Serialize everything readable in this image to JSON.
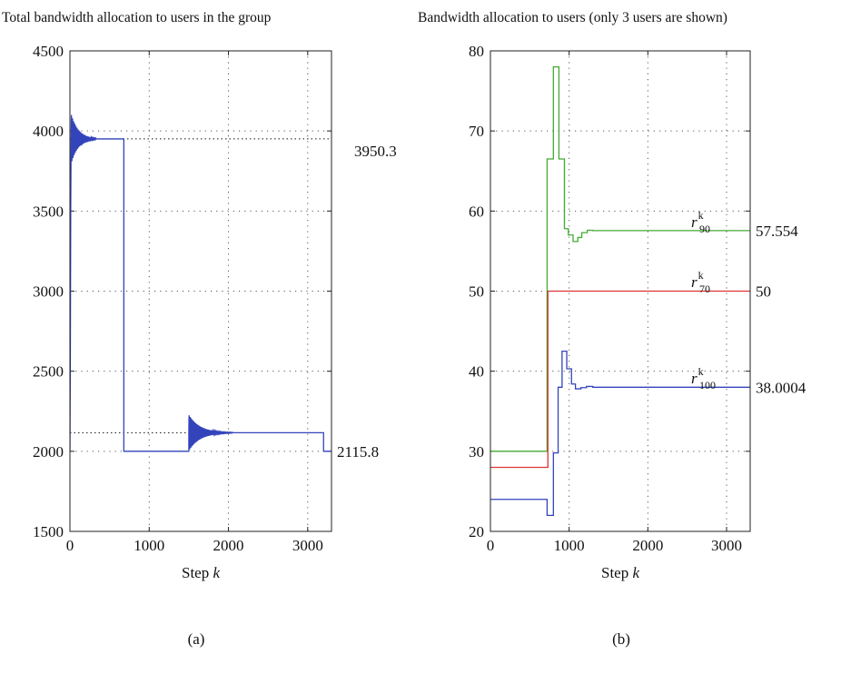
{
  "chart_data": [
    {
      "panel_id": "a",
      "type": "line",
      "title": "Total bandwidth allocation to users in the group",
      "xlabel": "Step",
      "xlabel_var": "k",
      "ylabel": "",
      "xlim": [
        0,
        3300
      ],
      "ylim": [
        1500,
        4500
      ],
      "x_ticks": [
        "0",
        "1000",
        "2000",
        "3000"
      ],
      "x_tick_values": [
        0,
        1000,
        2000,
        3000
      ],
      "y_ticks": [
        "1500",
        "2000",
        "2500",
        "3000",
        "3500",
        "4000",
        "4500"
      ],
      "y_tick_values": [
        1500,
        2000,
        2500,
        3000,
        3500,
        4000,
        4500
      ],
      "grid": true,
      "reference_lines": [
        {
          "y": 3950.3,
          "x_from": 0,
          "x_to": 3300
        },
        {
          "y": 2115.8,
          "x_from": 0,
          "x_to": 1500
        }
      ],
      "end_labels": [
        {
          "text": "3950.3",
          "y": 3950.3
        },
        {
          "text": "2115.8",
          "y": 2000
        }
      ],
      "series": [
        {
          "color": "#3344bb",
          "segments": [
            {
              "kind": "points",
              "x": [
                0,
                5,
                10,
                15
              ],
              "y": [
                2000,
                2600,
                3500,
                3950
              ]
            },
            {
              "kind": "oscillation",
              "x_start": 15,
              "x_end": 330,
              "center": 3950.3,
              "amplitude": 160,
              "period": 14,
              "decay": 90
            },
            {
              "kind": "points",
              "x": [
                330,
                680,
                680,
                1500
              ],
              "y": [
                3950.3,
                3950.3,
                2000,
                2000
              ]
            },
            {
              "kind": "oscillation",
              "x_start": 1500,
              "x_end": 2050,
              "center": 2115.8,
              "amplitude": 115,
              "period": 14,
              "decay": 140
            },
            {
              "kind": "points",
              "x": [
                2050,
                3200,
                3200,
                3300
              ],
              "y": [
                2115.8,
                2115.8,
                2000,
                2000
              ]
            }
          ]
        }
      ],
      "panel_label": "(a)"
    },
    {
      "panel_id": "b",
      "type": "line",
      "title": "Bandwidth allocation to users (only 3 users are shown)",
      "xlabel": "Step",
      "xlabel_var": "k",
      "ylabel": "",
      "xlim": [
        0,
        3300
      ],
      "ylim": [
        20,
        80
      ],
      "x_ticks": [
        "0",
        "1000",
        "2000",
        "3000"
      ],
      "x_tick_values": [
        0,
        1000,
        2000,
        3000
      ],
      "y_ticks": [
        "20",
        "30",
        "40",
        "50",
        "60",
        "70",
        "80"
      ],
      "y_tick_values": [
        20,
        30,
        40,
        50,
        60,
        70,
        80
      ],
      "grid": true,
      "series": [
        {
          "label_base": "r",
          "label_sup": "k",
          "label_sub": "90",
          "label_at": [
            2550,
            58
          ],
          "color": "#44aa33",
          "end_value": "57.554",
          "x": [
            0,
            720,
            720,
            800,
            800,
            870,
            870,
            910,
            910,
            940,
            940,
            990,
            990,
            1050,
            1050,
            1110,
            1110,
            1160,
            1160,
            1230,
            1230,
            1300,
            1300,
            3300
          ],
          "y": [
            30,
            30,
            66.5,
            66.5,
            78,
            78,
            66.5,
            66.5,
            66.5,
            66.5,
            57.8,
            57.8,
            57,
            57,
            56.2,
            56.2,
            56.7,
            56.7,
            57.3,
            57.3,
            57.6,
            57.6,
            57.554,
            57.554
          ]
        },
        {
          "label_base": "r",
          "label_sup": "k",
          "label_sub": "70",
          "label_at": [
            2550,
            50.5
          ],
          "color": "#dd3333",
          "end_value": "50",
          "x": [
            0,
            730,
            730,
            3300
          ],
          "y": [
            28,
            28,
            50,
            50
          ]
        },
        {
          "label_base": "r",
          "label_sup": "k",
          "label_sub": "100",
          "label_at": [
            2550,
            38.5
          ],
          "color": "#3344bb",
          "end_value": "38.0004",
          "x": [
            0,
            720,
            720,
            800,
            800,
            860,
            860,
            910,
            910,
            970,
            970,
            1030,
            1030,
            1080,
            1080,
            1150,
            1150,
            1220,
            1220,
            1300,
            1300,
            3300
          ],
          "y": [
            24,
            24,
            22,
            22,
            29.8,
            29.8,
            38,
            38,
            42.5,
            42.5,
            40.3,
            40.3,
            38.4,
            38.4,
            37.8,
            37.8,
            37.95,
            37.95,
            38.1,
            38.1,
            38.0004,
            38.0004
          ]
        }
      ],
      "panel_label": "(b)"
    }
  ]
}
